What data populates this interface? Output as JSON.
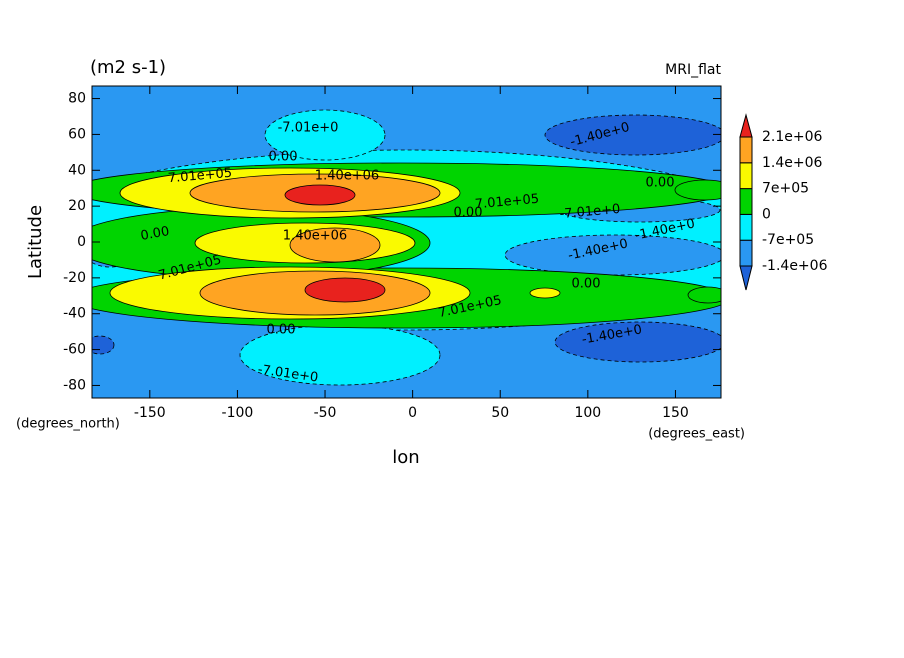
{
  "chart_data": {
    "type": "contour",
    "title": "(m2 s-1)",
    "subtitle": "MRI_flat",
    "x_label": "lon",
    "y_label": "Latitude",
    "x_units": "(degrees_east)",
    "y_units": "(degrees_north)",
    "xlim": [
      -183,
      176
    ],
    "ylim": [
      -87,
      87
    ],
    "xticks": [
      -150,
      -100,
      -50,
      0,
      50,
      100,
      150
    ],
    "yticks": [
      -80,
      -60,
      -40,
      -20,
      0,
      20,
      40,
      60,
      80
    ],
    "levels": [
      {
        "value": -1400000,
        "label": "-1.4e+06"
      },
      {
        "value": -700000,
        "label": "-7e+05"
      },
      {
        "value": 0,
        "label": "0"
      },
      {
        "value": 700000,
        "label": "7e+05"
      },
      {
        "value": 1400000,
        "label": "1.4e+06"
      },
      {
        "value": 2100000,
        "label": "2.1e+06"
      }
    ],
    "colors": [
      "#1e62d8",
      "#2a98f2",
      "#00f0ff",
      "#00d400",
      "#fafa00",
      "#ffa422",
      "#e8221e"
    ],
    "contour_labels": [
      "-7.01e+0",
      "0.00",
      "7.01e+05",
      "1.40e+06",
      "0.00",
      "7.01e+05",
      "0.00",
      "-7.01e+0",
      "0.00",
      "1.40e+06",
      "-1.40e+0",
      "-1.40e+0",
      "7.01e+05",
      "0.00",
      "7.01e+05",
      "0.00",
      "-1.40e+0",
      "-1.40e+0",
      "-7.01e+0"
    ]
  }
}
